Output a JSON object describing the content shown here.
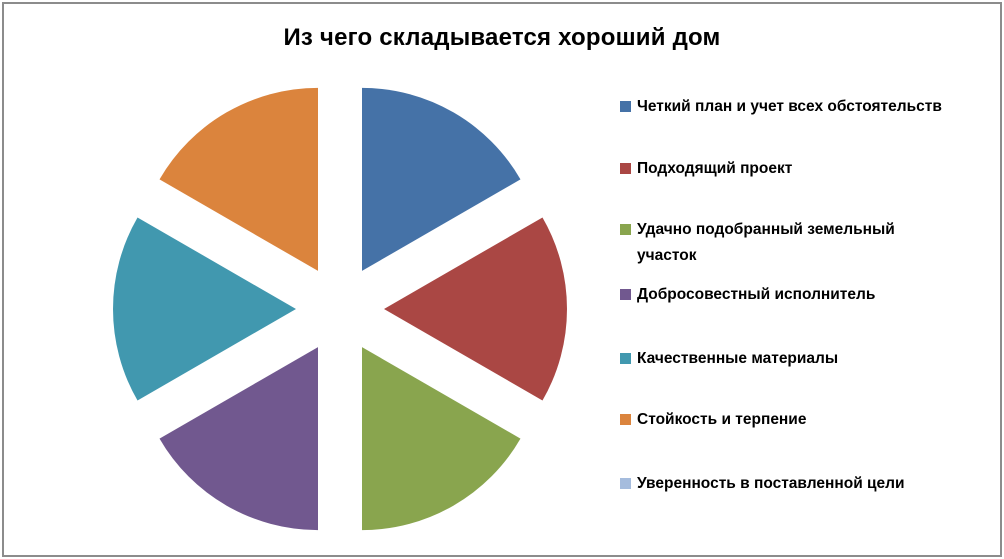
{
  "window": {
    "background": "#ffffff",
    "border_color": "#8c8c8c"
  },
  "chart_data": {
    "type": "pie",
    "title": "Из чего складывается хороший дом",
    "categories": [
      "Четкий план и учет всех обстоятельств",
      "Подходящий проект",
      "Удачно подобранный земельный участок",
      "Добросовестный исполнитель",
      "Качественные материалы",
      "Стойкость и терпение",
      "Уверенность в поставленной цели"
    ],
    "values": [
      1,
      1,
      1,
      1,
      1,
      1,
      0
    ],
    "colors": [
      "#4572A7",
      "#AA4744",
      "#89A54E",
      "#71588F",
      "#4198AF",
      "#DB843D",
      "#A5BCDD"
    ],
    "legend_position": "right",
    "exploded": true,
    "start_angle_deg": 0,
    "slice_labels_shown": false
  }
}
